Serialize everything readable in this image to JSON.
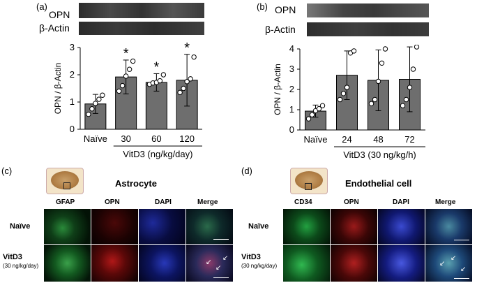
{
  "panel_a": {
    "letter": "(a)",
    "blot_labels": [
      "OPN",
      "β-Actin"
    ],
    "ylabel": "OPN / β-Actin",
    "xlabel": "VitD3  (ng/kg/day)",
    "star": "*"
  },
  "panel_b": {
    "letter": "(b)",
    "blot_labels": [
      "OPN",
      "β-Actin"
    ],
    "ylabel": "OPN / β-Actin",
    "xlabel": "VitD3 (30 ng/kg/h)",
    "star": "*"
  },
  "panel_c": {
    "letter": "(c)",
    "title": "Astrocyte",
    "columns": [
      "GFAP",
      "OPN",
      "DAPI",
      "Merge"
    ],
    "rows": [
      "Naïve",
      "VitD3"
    ],
    "row_sub": "(30 ng/kg/day)",
    "colors": [
      "#1a8a2e",
      "#c02020",
      "#2a3ad0",
      "#5a7a8a"
    ]
  },
  "panel_d": {
    "letter": "(d)",
    "title": "Endothelial cell",
    "columns": [
      "CD34",
      "OPN",
      "DAPI",
      "Merge"
    ],
    "rows": [
      "Naïve",
      "VitD3"
    ],
    "row_sub": "(30 ng/kg/day)",
    "colors": [
      "#1a8a2e",
      "#c02020",
      "#2a3ad0",
      "#5a7a8a"
    ]
  },
  "chart_data": [
    {
      "type": "bar",
      "categories": [
        "Naïve",
        "30",
        "60",
        "120"
      ],
      "values": [
        0.93,
        1.92,
        1.72,
        1.8
      ],
      "errors": [
        0.35,
        0.62,
        0.32,
        0.95
      ],
      "significant": [
        false,
        true,
        true,
        true
      ],
      "points": [
        [
          0.55,
          0.75,
          0.95,
          1.1,
          1.25
        ],
        [
          1.4,
          1.6,
          1.95,
          2.2,
          2.5
        ],
        [
          1.65,
          1.7,
          1.72,
          1.78,
          2.0
        ],
        [
          1.35,
          1.5,
          1.75,
          1.85,
          2.65
        ]
      ],
      "ylim": [
        0,
        3
      ],
      "yticks": [
        0,
        1,
        2,
        3
      ],
      "ylabel": "OPN / β-Actin",
      "xlabel": "VitD3  (ng/kg/day)"
    },
    {
      "type": "bar",
      "categories": [
        "Naïve",
        "24",
        "48",
        "72"
      ],
      "values": [
        0.93,
        2.7,
        2.45,
        2.5
      ],
      "errors": [
        0.3,
        1.2,
        1.5,
        1.6
      ],
      "significant": [
        false,
        true,
        true,
        true
      ],
      "points": [
        [
          0.55,
          0.75,
          0.95,
          1.05,
          1.2
        ],
        [
          1.5,
          1.8,
          2.1,
          3.8,
          3.9
        ],
        [
          1.3,
          1.5,
          2.4,
          3.3,
          4.0
        ],
        [
          1.2,
          1.5,
          2.1,
          3.0,
          4.1
        ]
      ],
      "ylim": [
        0,
        4
      ],
      "yticks": [
        0,
        1,
        2,
        3,
        4
      ],
      "ylabel": "OPN / β-Actin",
      "xlabel": "VitD3 (30 ng/kg/h)"
    }
  ]
}
